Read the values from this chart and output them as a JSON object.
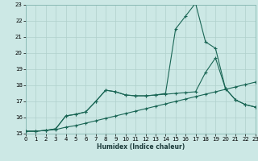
{
  "xlabel": "Humidex (Indice chaleur)",
  "background_color": "#cce8e5",
  "grid_color": "#b0d0cc",
  "line_color": "#1a6655",
  "xlim": [
    0,
    23
  ],
  "ylim": [
    15,
    23
  ],
  "xticks": [
    0,
    1,
    2,
    3,
    4,
    5,
    6,
    7,
    8,
    9,
    10,
    11,
    12,
    13,
    14,
    15,
    16,
    17,
    18,
    19,
    20,
    21,
    22,
    23
  ],
  "yticks": [
    15,
    16,
    17,
    18,
    19,
    20,
    21,
    22,
    23
  ],
  "s1_x": [
    0,
    1,
    2,
    3,
    4,
    5,
    6,
    7,
    8,
    9,
    10,
    11,
    12,
    13,
    14,
    15,
    16,
    17,
    18,
    19,
    20,
    21,
    22,
    23
  ],
  "s1_y": [
    15.15,
    15.15,
    15.2,
    15.25,
    15.4,
    15.5,
    15.65,
    15.8,
    15.95,
    16.1,
    16.25,
    16.4,
    16.55,
    16.7,
    16.85,
    17.0,
    17.15,
    17.3,
    17.45,
    17.6,
    17.75,
    17.9,
    18.05,
    18.2
  ],
  "s2_x": [
    0,
    1,
    2,
    3,
    4,
    5,
    6,
    7,
    8,
    9,
    10,
    11,
    12,
    13,
    14,
    15,
    16,
    17,
    18,
    19,
    20,
    21,
    22,
    23
  ],
  "s2_y": [
    15.15,
    15.15,
    15.2,
    15.3,
    16.1,
    16.2,
    16.35,
    17.0,
    17.7,
    17.6,
    17.4,
    17.35,
    17.35,
    17.4,
    17.45,
    17.5,
    17.55,
    17.6,
    18.8,
    19.7,
    17.8,
    17.1,
    16.8,
    16.65
  ],
  "s3_x": [
    0,
    1,
    2,
    3,
    4,
    5,
    6,
    7,
    8,
    9,
    10,
    11,
    12,
    13,
    14,
    15,
    16,
    17,
    18,
    19,
    20,
    21,
    22,
    23
  ],
  "s3_y": [
    15.15,
    15.15,
    15.2,
    15.3,
    16.1,
    16.2,
    16.35,
    17.0,
    17.7,
    17.6,
    17.4,
    17.35,
    17.35,
    17.4,
    17.5,
    21.5,
    22.3,
    23.1,
    20.7,
    20.3,
    17.8,
    17.1,
    16.8,
    16.65
  ]
}
